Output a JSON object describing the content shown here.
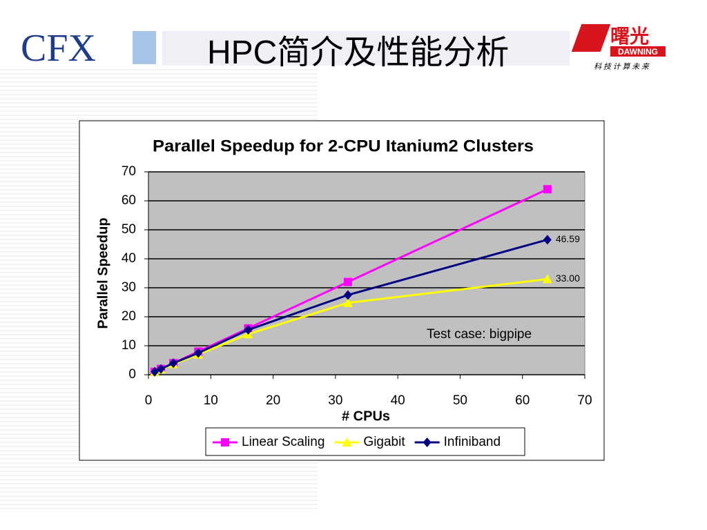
{
  "header": {
    "title": "HPC简介及性能分析",
    "left_logo": "CFX",
    "right_logo": "曙光",
    "right_logo_sub": "DAWNING",
    "right_logo_motto": "科 技 计 算 未 来"
  },
  "chart_data": {
    "type": "line",
    "title": "Parallel Speedup for 2-CPU Itanium2 Clusters",
    "x_label": "# CPUs",
    "y_label": "Parallel Speedup",
    "x": [
      1,
      2,
      4,
      8,
      16,
      32,
      64
    ],
    "series": [
      {
        "name": "Linear Scaling",
        "color": "#ff00ff",
        "marker": "square",
        "values": [
          1,
          2,
          4,
          8,
          16,
          32,
          64
        ]
      },
      {
        "name": "Gigabit",
        "color": "#ffff00",
        "marker": "triangle",
        "values": [
          1,
          1.9,
          3.7,
          7,
          14,
          24.8,
          33
        ],
        "value_labels": [
          null,
          null,
          null,
          null,
          null,
          null,
          "33.00"
        ]
      },
      {
        "name": "Infiniband",
        "color": "#000080",
        "marker": "diamond",
        "values": [
          1,
          2,
          4,
          7.5,
          15.5,
          27.5,
          46.59
        ],
        "value_labels": [
          null,
          null,
          null,
          null,
          null,
          null,
          "46.59"
        ]
      }
    ],
    "annotation": "Test case: bigpipe",
    "xlim": [
      0,
      70
    ],
    "xticks": [
      0,
      10,
      20,
      30,
      40,
      50,
      60,
      70
    ],
    "ylim": [
      0,
      70
    ],
    "yticks": [
      0,
      10,
      20,
      30,
      40,
      50,
      60,
      70
    ],
    "grid": true,
    "legend": "bottom"
  }
}
